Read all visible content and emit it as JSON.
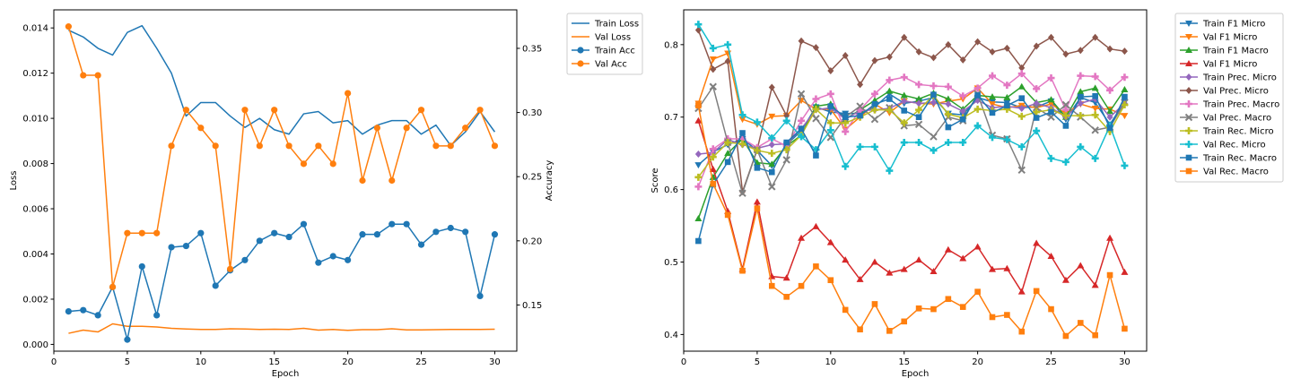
{
  "chart_data": [
    {
      "type": "line",
      "xlabel": "Epoch",
      "ylabel": "Loss",
      "y2label": "Accuracy",
      "xlim": [
        0,
        31.5
      ],
      "ylim": [
        -0.0003,
        0.0148
      ],
      "y2lim": [
        0.114,
        0.38
      ],
      "xticks": [
        0,
        5,
        10,
        15,
        20,
        25,
        30
      ],
      "yticks": [
        0.0,
        0.002,
        0.004,
        0.006,
        0.008,
        0.01,
        0.012,
        0.014
      ],
      "yticklabels": [
        "0.000",
        "0.002",
        "0.004",
        "0.006",
        "0.008",
        "0.010",
        "0.012",
        "0.014"
      ],
      "y2ticks": [
        0.15,
        0.2,
        0.25,
        0.3,
        0.35
      ],
      "y2ticklabels": [
        "0.15",
        "0.20",
        "0.25",
        "0.30",
        "0.35"
      ],
      "grid": false,
      "legend_position": "outside-top-right",
      "x": [
        1,
        2,
        3,
        4,
        5,
        6,
        7,
        8,
        9,
        10,
        11,
        12,
        13,
        14,
        15,
        16,
        17,
        18,
        19,
        20,
        21,
        22,
        23,
        24,
        25,
        26,
        27,
        28,
        29,
        30
      ],
      "series": [
        {
          "name": "Train Loss",
          "axis": "left",
          "color": "#1f77b4",
          "marker": "none",
          "values": [
            0.0139,
            0.0136,
            0.0131,
            0.0128,
            0.0138,
            0.0141,
            0.0131,
            0.012,
            0.0101,
            0.0107,
            0.0107,
            0.0101,
            0.0096,
            0.01,
            0.0095,
            0.0093,
            0.0102,
            0.0103,
            0.0098,
            0.0099,
            0.0093,
            0.0097,
            0.0099,
            0.0099,
            0.0093,
            0.0097,
            0.0088,
            0.0094,
            0.0103,
            0.0094
          ]
        },
        {
          "name": "Val Loss",
          "axis": "left",
          "color": "#ff7f0e",
          "marker": "none",
          "values": [
            0.00049,
            0.00063,
            0.00055,
            0.00091,
            0.0008,
            0.0008,
            0.00077,
            0.00071,
            0.00068,
            0.00066,
            0.00066,
            0.00069,
            0.00068,
            0.00066,
            0.00067,
            0.00066,
            0.00071,
            0.00063,
            0.00066,
            0.00062,
            0.00065,
            0.00065,
            0.00069,
            0.00064,
            0.00064,
            0.00065,
            0.00066,
            0.00066,
            0.00066,
            0.00067
          ]
        },
        {
          "name": "Train Acc",
          "axis": "right",
          "color": "#1f77b4",
          "marker": "circle",
          "values": [
            0.145,
            0.146,
            0.142,
            0.164,
            0.123,
            0.18,
            0.142,
            0.195,
            0.196,
            0.206,
            0.165,
            0.177,
            0.185,
            0.2,
            0.206,
            0.203,
            0.213,
            0.183,
            0.188,
            0.185,
            0.205,
            0.205,
            0.213,
            0.213,
            0.197,
            0.207,
            0.21,
            0.207,
            0.157,
            0.205
          ]
        },
        {
          "name": "Val Acc",
          "axis": "right",
          "color": "#ff7f0e",
          "marker": "circle",
          "values": [
            0.367,
            0.329,
            0.329,
            0.164,
            0.206,
            0.206,
            0.206,
            0.274,
            0.302,
            0.288,
            0.274,
            0.178,
            0.302,
            0.274,
            0.302,
            0.274,
            0.26,
            0.274,
            0.26,
            0.315,
            0.247,
            0.288,
            0.247,
            0.288,
            0.302,
            0.274,
            0.274,
            0.288,
            0.302,
            0.274
          ]
        }
      ]
    },
    {
      "type": "line",
      "xlabel": "Epoch",
      "ylabel": "Score",
      "xlim": [
        0,
        31.5
      ],
      "ylim": [
        0.377,
        0.848
      ],
      "xticks": [
        0,
        5,
        10,
        15,
        20,
        25,
        30
      ],
      "yticks": [
        0.4,
        0.5,
        0.6,
        0.7,
        0.8
      ],
      "yticklabels": [
        "0.4",
        "0.5",
        "0.6",
        "0.7",
        "0.8"
      ],
      "grid": false,
      "legend_position": "outside-top-right",
      "x": [
        1,
        2,
        3,
        4,
        5,
        6,
        7,
        8,
        9,
        10,
        11,
        12,
        13,
        14,
        15,
        16,
        17,
        18,
        19,
        20,
        21,
        22,
        23,
        24,
        25,
        26,
        27,
        28,
        29,
        30
      ],
      "series": [
        {
          "name": "Train F1 Micro",
          "color": "#1f77b4",
          "marker": "triangle-down",
          "values": [
            0.634,
            0.652,
            0.662,
            0.67,
            0.654,
            0.633,
            0.662,
            0.681,
            0.714,
            0.707,
            0.705,
            0.705,
            0.714,
            0.732,
            0.719,
            0.722,
            0.727,
            0.705,
            0.703,
            0.727,
            0.721,
            0.72,
            0.713,
            0.714,
            0.722,
            0.697,
            0.727,
            0.72,
            0.69,
            0.721
          ]
        },
        {
          "name": "Val F1 Micro",
          "color": "#ff7f0e",
          "marker": "triangle-down",
          "values": [
            0.719,
            0.78,
            0.788,
            0.697,
            0.69,
            0.701,
            0.702,
            0.723,
            0.711,
            0.711,
            0.683,
            0.7,
            0.718,
            0.706,
            0.722,
            0.719,
            0.718,
            0.722,
            0.725,
            0.74,
            0.718,
            0.713,
            0.716,
            0.713,
            0.718,
            0.705,
            0.718,
            0.712,
            0.711,
            0.702
          ]
        },
        {
          "name": "Train F1 Macro",
          "color": "#2ca02c",
          "marker": "triangle-up",
          "values": [
            0.56,
            0.617,
            0.65,
            0.67,
            0.637,
            0.635,
            0.66,
            0.675,
            0.715,
            0.718,
            0.697,
            0.71,
            0.723,
            0.736,
            0.73,
            0.725,
            0.733,
            0.725,
            0.711,
            0.73,
            0.728,
            0.727,
            0.742,
            0.72,
            0.724,
            0.7,
            0.735,
            0.74,
            0.708,
            0.738
          ]
        },
        {
          "name": "Val F1 Micro",
          "color": "#d62728",
          "marker": "triangle-up",
          "values": [
            0.695,
            0.628,
            0.57,
            0.49,
            0.583,
            0.48,
            0.478,
            0.533,
            0.549,
            0.527,
            0.503,
            0.476,
            0.5,
            0.485,
            0.49,
            0.503,
            0.487,
            0.517,
            0.505,
            0.521,
            0.49,
            0.491,
            0.459,
            0.526,
            0.508,
            0.475,
            0.495,
            0.468,
            0.533,
            0.486
          ]
        },
        {
          "name": "Train Prec. Micro",
          "color": "#9467bd",
          "marker": "diamond",
          "values": [
            0.649,
            0.651,
            0.669,
            0.662,
            0.657,
            0.662,
            0.663,
            0.684,
            0.71,
            0.713,
            0.697,
            0.709,
            0.71,
            0.712,
            0.722,
            0.719,
            0.72,
            0.718,
            0.708,
            0.723,
            0.713,
            0.715,
            0.712,
            0.719,
            0.713,
            0.7,
            0.719,
            0.725,
            0.7,
            0.719
          ]
        },
        {
          "name": "Val Prec. Micro",
          "color": "#8c564b",
          "marker": "diamond",
          "values": [
            0.82,
            0.766,
            0.777,
            0.597,
            0.655,
            0.741,
            0.702,
            0.805,
            0.796,
            0.764,
            0.785,
            0.745,
            0.778,
            0.783,
            0.81,
            0.79,
            0.782,
            0.8,
            0.779,
            0.804,
            0.79,
            0.795,
            0.768,
            0.798,
            0.81,
            0.787,
            0.792,
            0.81,
            0.794,
            0.791
          ]
        },
        {
          "name": "Train Prec. Macro",
          "color": "#e377c2",
          "marker": "plus",
          "values": [
            0.604,
            0.656,
            0.67,
            0.67,
            0.658,
            0.67,
            0.66,
            0.695,
            0.725,
            0.732,
            0.68,
            0.71,
            0.732,
            0.751,
            0.755,
            0.745,
            0.743,
            0.742,
            0.729,
            0.74,
            0.757,
            0.744,
            0.76,
            0.739,
            0.754,
            0.71,
            0.757,
            0.756,
            0.737,
            0.755
          ]
        },
        {
          "name": "Val Prec. Macro",
          "color": "#7f7f7f",
          "marker": "x",
          "values": [
            0.712,
            0.742,
            0.665,
            0.595,
            0.655,
            0.604,
            0.641,
            0.732,
            0.698,
            0.672,
            0.7,
            0.715,
            0.697,
            0.713,
            0.688,
            0.69,
            0.673,
            0.7,
            0.695,
            0.732,
            0.675,
            0.67,
            0.627,
            0.713,
            0.7,
            0.717,
            0.7,
            0.682,
            0.686,
            0.72
          ]
        },
        {
          "name": "Train Rec. Micro",
          "color": "#bcbd22",
          "marker": "plus",
          "values": [
            0.617,
            0.645,
            0.665,
            0.663,
            0.654,
            0.65,
            0.655,
            0.675,
            0.711,
            0.692,
            0.692,
            0.7,
            0.71,
            0.71,
            0.692,
            0.71,
            0.73,
            0.704,
            0.699,
            0.711,
            0.709,
            0.711,
            0.701,
            0.707,
            0.71,
            0.702,
            0.702,
            0.703,
            0.68,
            0.717
          ]
        },
        {
          "name": "Val Rec. Micro",
          "color": "#17becf",
          "marker": "plus",
          "values": [
            0.828,
            0.795,
            0.8,
            0.703,
            0.693,
            0.671,
            0.695,
            0.673,
            0.655,
            0.682,
            0.632,
            0.659,
            0.659,
            0.626,
            0.665,
            0.665,
            0.654,
            0.665,
            0.665,
            0.688,
            0.672,
            0.669,
            0.659,
            0.681,
            0.643,
            0.638,
            0.659,
            0.643,
            0.688,
            0.633
          ]
        },
        {
          "name": "Train Rec. Macro",
          "color": "#1f77b4",
          "marker": "square",
          "values": [
            0.529,
            0.607,
            0.638,
            0.678,
            0.63,
            0.624,
            0.665,
            0.684,
            0.647,
            0.715,
            0.7,
            0.702,
            0.718,
            0.725,
            0.709,
            0.7,
            0.731,
            0.686,
            0.697,
            0.73,
            0.706,
            0.716,
            0.726,
            0.699,
            0.707,
            0.688,
            0.728,
            0.729,
            0.685,
            0.728
          ]
        },
        {
          "name": "Val Rec. Macro",
          "color": "#ff7f0e",
          "marker": "square",
          "values": [
            0.716,
            0.608,
            0.565,
            0.488,
            0.574,
            0.467,
            0.452,
            0.467,
            0.494,
            0.475,
            0.434,
            0.407,
            0.442,
            0.405,
            0.418,
            0.436,
            0.435,
            0.449,
            0.438,
            0.459,
            0.424,
            0.427,
            0.404,
            0.46,
            0.435,
            0.398,
            0.416,
            0.399,
            0.482,
            0.408
          ]
        }
      ]
    }
  ]
}
